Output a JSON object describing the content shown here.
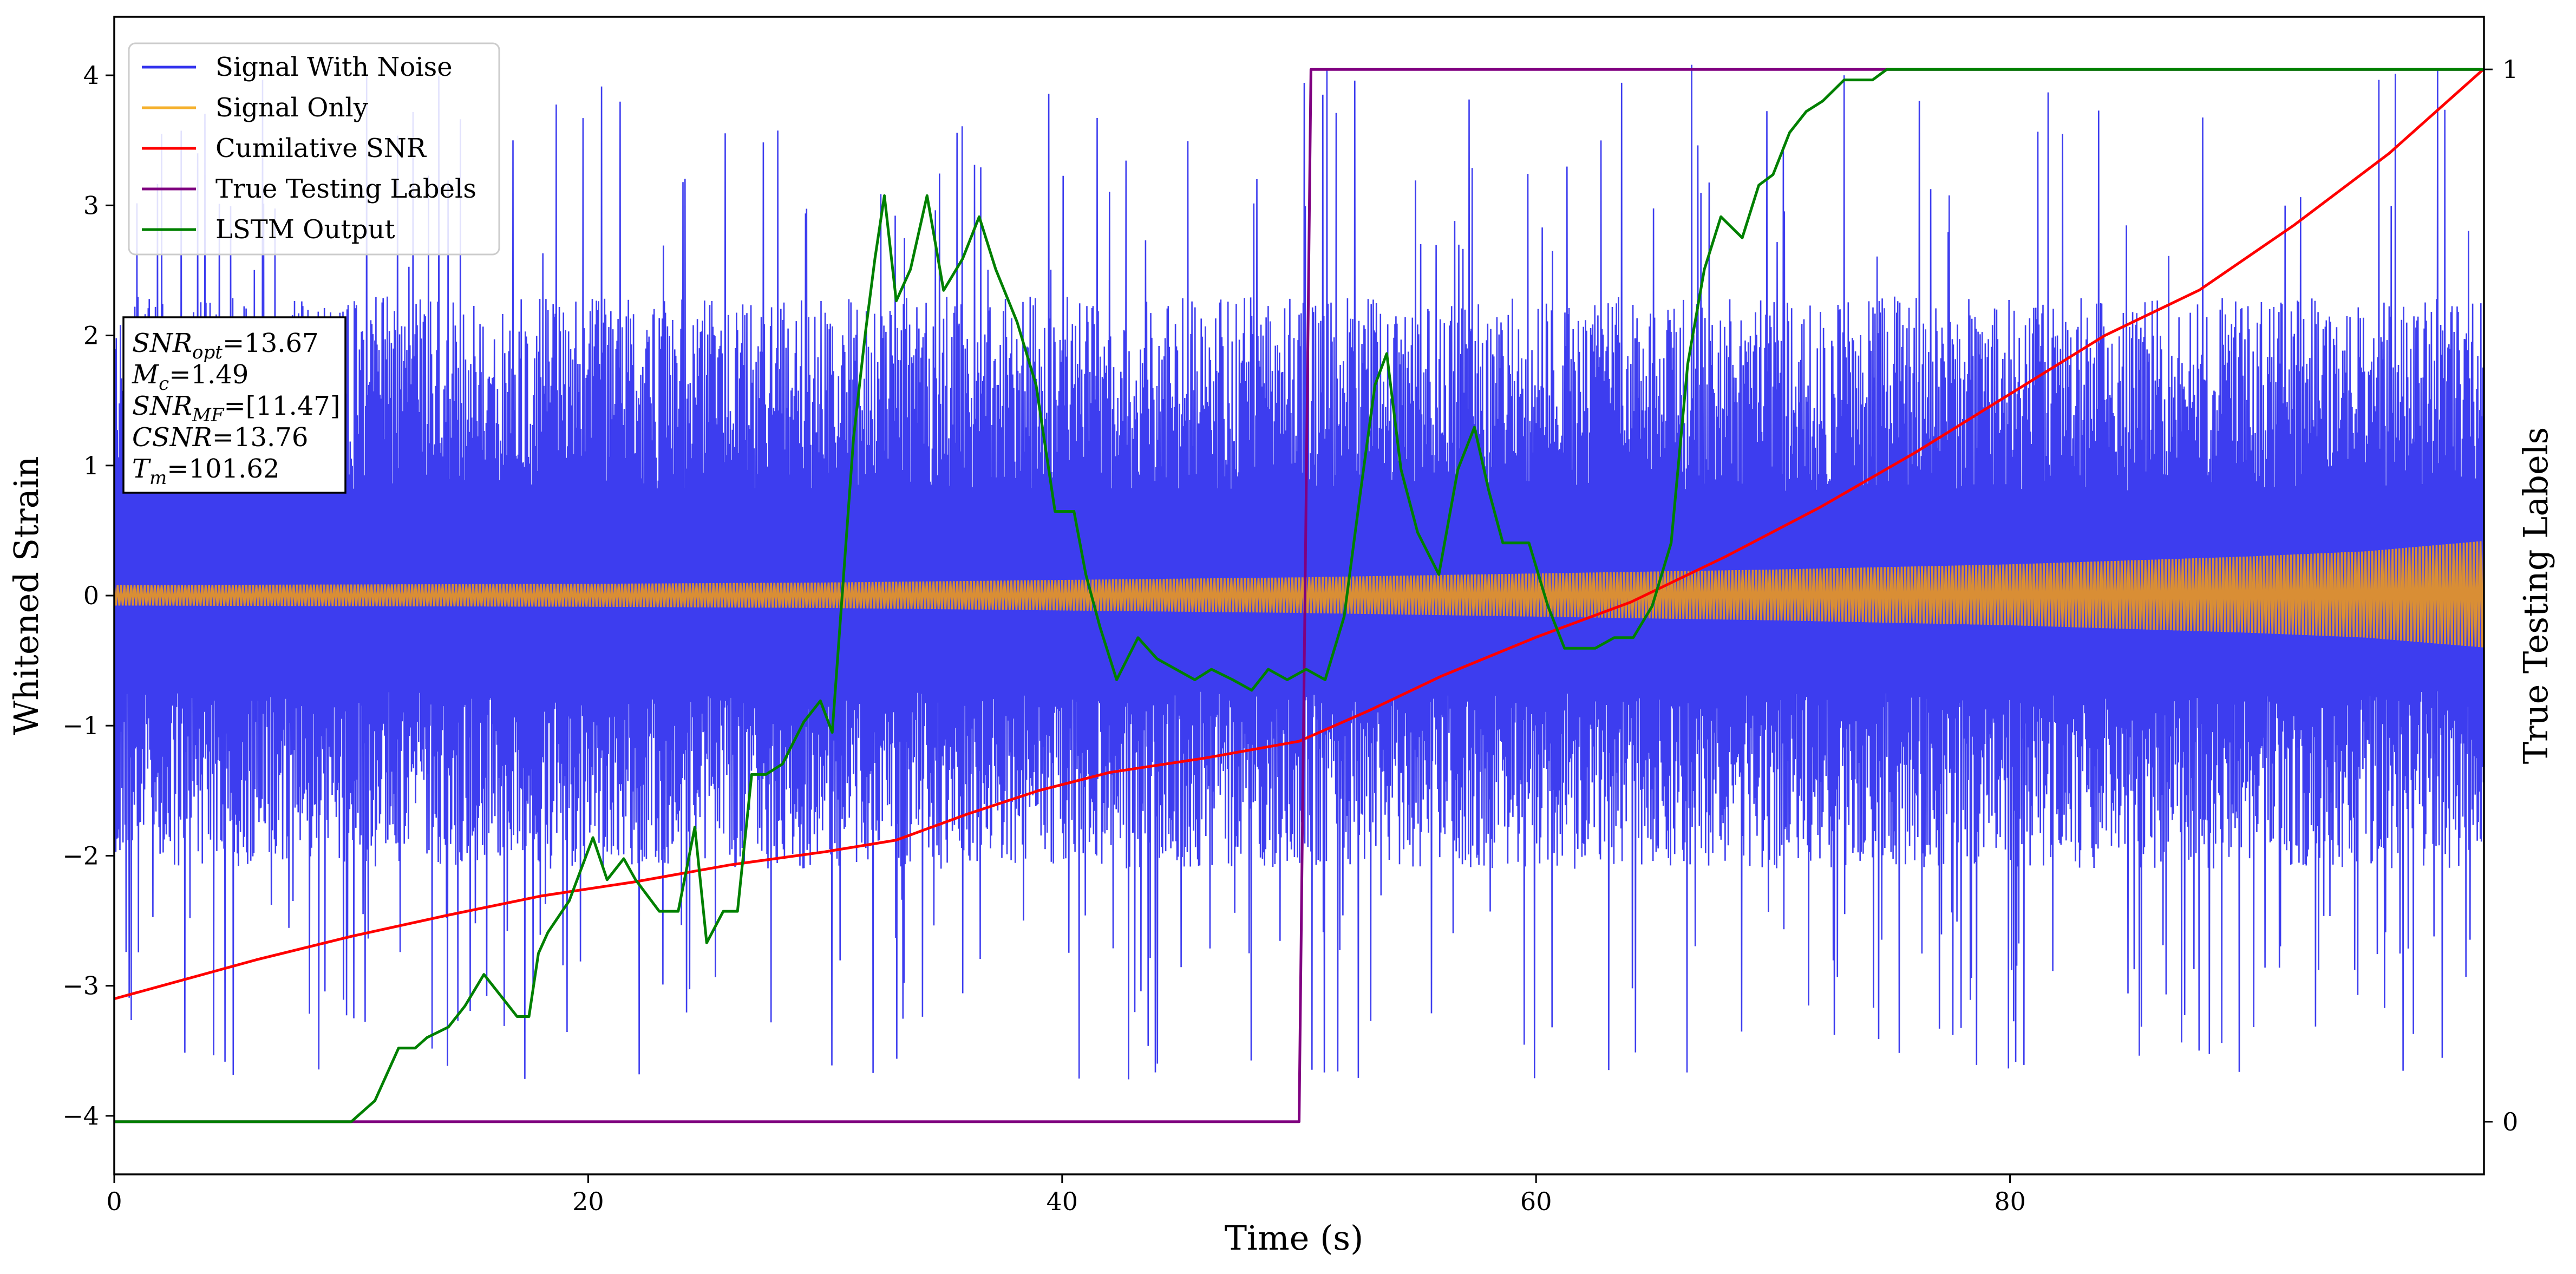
{
  "chart_data": {
    "type": "line",
    "xlabel": "Time (s)",
    "ylabel_left": "Whitened Strain",
    "ylabel_right": "True Testing Labels",
    "xlim": [
      0,
      100
    ],
    "ylim_left": [
      -4.45,
      4.45
    ],
    "ylim_right": [
      -0.05,
      1.05
    ],
    "x_ticks": [
      0,
      20,
      40,
      60,
      80
    ],
    "x_tick_labels": [
      "0",
      "20",
      "40",
      "60",
      "80"
    ],
    "y_ticks_left": [
      -4,
      -3,
      -2,
      -1,
      0,
      1,
      2,
      3,
      4
    ],
    "y_tick_labels_left": [
      "−4",
      "−3",
      "−2",
      "−1",
      "0",
      "1",
      "2",
      "3",
      "4"
    ],
    "y_ticks_right": [
      0,
      1
    ],
    "y_tick_labels_right": [
      "0",
      "1"
    ],
    "legend": {
      "placement": "upper-left",
      "entries": [
        {
          "label": "Signal With Noise",
          "color": "#3333ee"
        },
        {
          "label": "Signal Only",
          "color": "#f5b12e"
        },
        {
          "label": "Cumilative SNR",
          "color": "#ff0000"
        },
        {
          "label": "True Testing Labels",
          "color": "#800080"
        },
        {
          "label": "LSTM Output",
          "color": "#008000"
        }
      ]
    },
    "annotation": [
      {
        "base": "SNR",
        "sub": "opt",
        "value": "=13.67"
      },
      {
        "base": "M",
        "sub": "c",
        "value": "=1.49"
      },
      {
        "base": "SNR",
        "sub": "MF",
        "value": "=[11.47]"
      },
      {
        "base": "CSNR",
        "sub": "",
        "value": "=13.76"
      },
      {
        "base": "T",
        "sub": "m",
        "value": "=101.62"
      }
    ],
    "series": [
      {
        "name": "Signal With Noise",
        "axis": "left",
        "color": "#3333ee",
        "note": "dense whitened noise, roughly -2 to +2.5 with spikes to about ±4",
        "envelope_upper": 2.3,
        "envelope_lower": -2.1,
        "peak_max": 4.1,
        "peak_min": -3.75
      },
      {
        "name": "Signal Only",
        "axis": "left",
        "color": "#d98e35",
        "amplitude": {
          "x": [
            0,
            20,
            30,
            40,
            50,
            60,
            70,
            80,
            90,
            95,
            100
          ],
          "y": [
            0.08,
            0.09,
            0.1,
            0.12,
            0.14,
            0.17,
            0.2,
            0.24,
            0.3,
            0.34,
            0.42
          ]
        }
      },
      {
        "name": "Cumilative SNR",
        "axis": "left",
        "color": "#ff0000",
        "x": [
          0,
          3,
          6,
          10,
          14,
          18,
          22,
          26,
          30,
          33,
          36,
          39,
          42,
          46,
          50,
          53,
          56,
          60,
          64,
          68,
          72,
          76,
          80,
          84,
          88,
          92,
          96,
          100
        ],
        "y": [
          -3.1,
          -2.95,
          -2.8,
          -2.62,
          -2.46,
          -2.31,
          -2.2,
          -2.07,
          -1.97,
          -1.88,
          -1.68,
          -1.5,
          -1.36,
          -1.25,
          -1.12,
          -0.88,
          -0.62,
          -0.32,
          -0.05,
          0.3,
          0.68,
          1.1,
          1.55,
          2.0,
          2.35,
          2.85,
          3.4,
          4.05
        ]
      },
      {
        "name": "True Testing Labels",
        "axis": "right",
        "color": "#800080",
        "x": [
          0,
          50,
          50.5,
          100
        ],
        "y": [
          0,
          0,
          1,
          1
        ]
      },
      {
        "name": "LSTM Output",
        "axis": "right",
        "color": "#008000",
        "x": [
          0,
          10,
          11,
          12,
          12.7,
          13.2,
          14.1,
          14.8,
          15.6,
          16.3,
          17,
          17.5,
          17.9,
          18.3,
          19.2,
          20.2,
          20.8,
          21.5,
          22,
          23,
          23.8,
          24.5,
          25,
          25.7,
          26.3,
          26.9,
          27.5,
          28.2,
          29.1,
          29.8,
          30.3,
          31.2,
          31.7,
          32.1,
          32.5,
          33,
          33.6,
          34.3,
          35,
          35.8,
          36.5,
          37.2,
          38.1,
          38.9,
          39.7,
          40.5,
          41,
          41.6,
          42.3,
          43.2,
          44,
          44.8,
          45.6,
          46.3,
          47.2,
          48,
          48.7,
          49.5,
          50.3,
          51.1,
          51.9,
          52.6,
          53.2,
          53.7,
          54.3,
          55,
          55.9,
          56.7,
          57.4,
          58,
          58.6,
          59.1,
          59.7,
          60.5,
          61.2,
          61.9,
          62.5,
          63.3,
          64.1,
          64.9,
          65.7,
          66.4,
          67.1,
          67.8,
          68.7,
          69.4,
          70,
          70.7,
          71.4,
          72.1,
          73,
          74.2,
          74.8,
          76,
          78,
          80,
          100
        ],
        "y": [
          0,
          0,
          0.02,
          0.07,
          0.07,
          0.08,
          0.09,
          0.11,
          0.14,
          0.12,
          0.1,
          0.1,
          0.16,
          0.18,
          0.21,
          0.27,
          0.23,
          0.25,
          0.23,
          0.2,
          0.2,
          0.28,
          0.17,
          0.2,
          0.2,
          0.33,
          0.33,
          0.34,
          0.38,
          0.4,
          0.37,
          0.65,
          0.75,
          0.82,
          0.88,
          0.78,
          0.81,
          0.88,
          0.79,
          0.82,
          0.86,
          0.81,
          0.76,
          0.7,
          0.58,
          0.58,
          0.52,
          0.47,
          0.42,
          0.46,
          0.44,
          0.43,
          0.42,
          0.43,
          0.42,
          0.41,
          0.43,
          0.42,
          0.43,
          0.42,
          0.48,
          0.6,
          0.7,
          0.73,
          0.62,
          0.56,
          0.52,
          0.62,
          0.66,
          0.6,
          0.55,
          0.55,
          0.55,
          0.49,
          0.45,
          0.45,
          0.45,
          0.46,
          0.46,
          0.49,
          0.55,
          0.72,
          0.81,
          0.86,
          0.84,
          0.89,
          0.9,
          0.94,
          0.96,
          0.97,
          0.99,
          0.99,
          1.0,
          1.0,
          1.0,
          1.0,
          1.0
        ]
      }
    ]
  },
  "colors": {
    "noise": "#3333ee",
    "signal": "#d98e35",
    "snr": "#ff0000",
    "labels": "#800080",
    "lstm": "#008000"
  }
}
